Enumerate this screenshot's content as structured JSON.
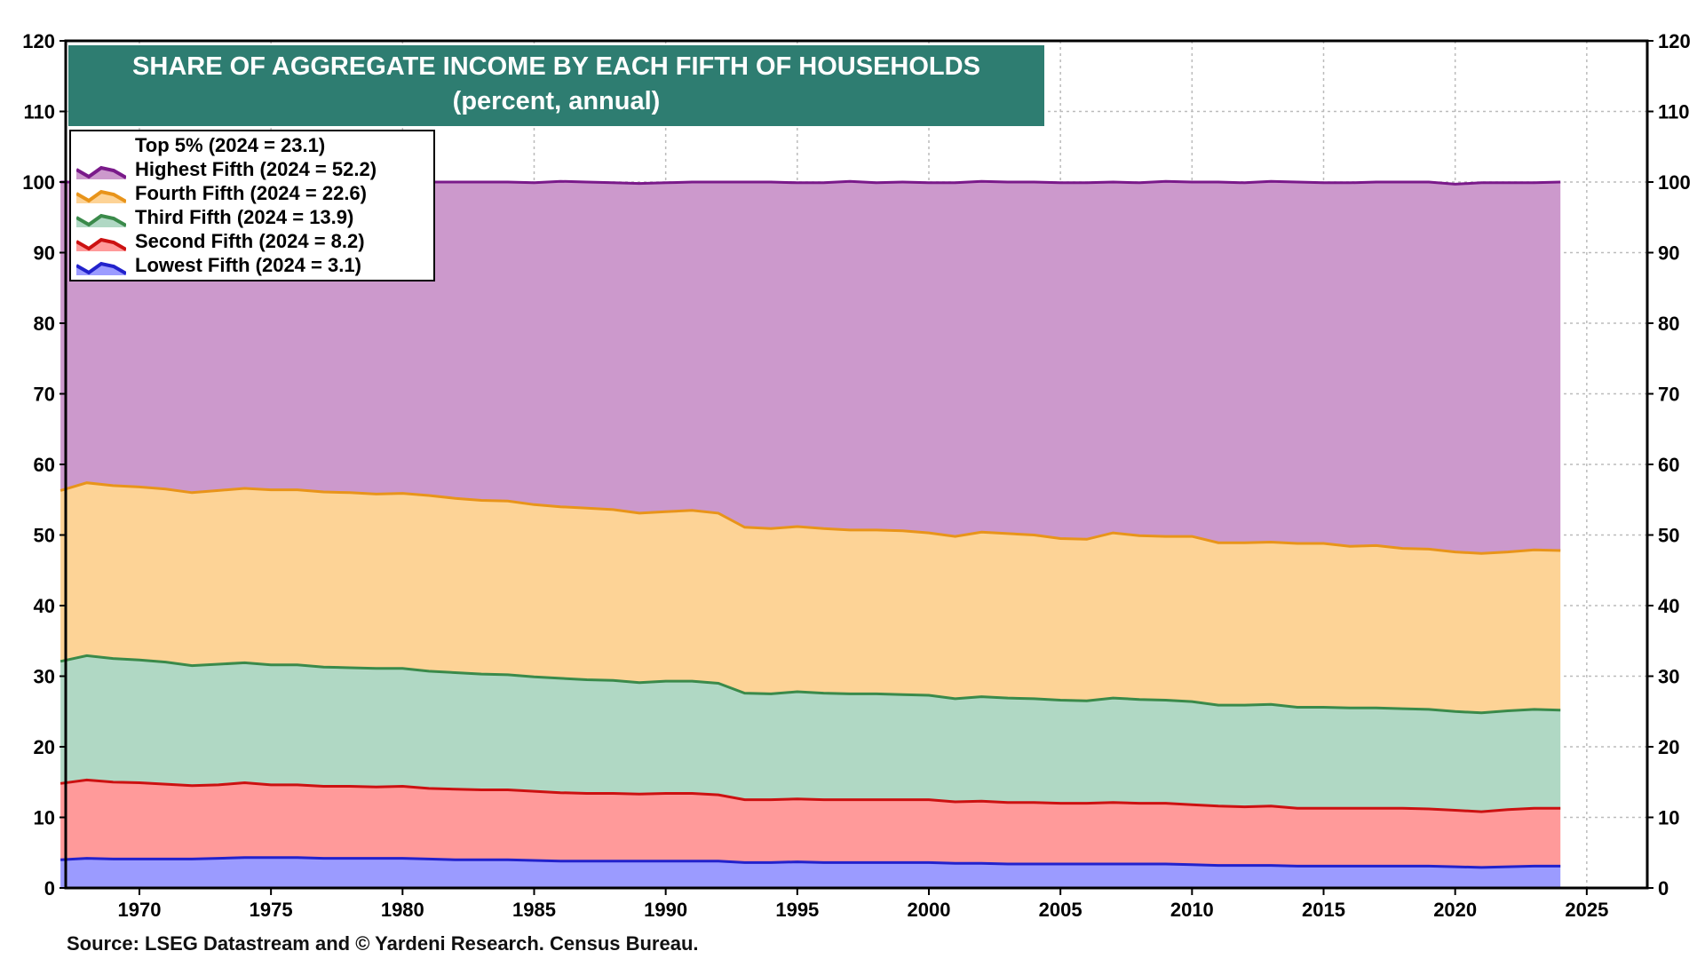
{
  "source": "Source: LSEG Datastream and © Yardeni Research. Census Bureau.",
  "chart_data": {
    "type": "area",
    "title": "SHARE OF AGGREGATE INCOME BY EACH FIFTH OF HOUSEHOLDS",
    "subtitle": "(percent, annual)",
    "stacked": true,
    "xlim": [
      1967.2,
      2027.3
    ],
    "ylim": [
      0,
      120
    ],
    "y_ticks": [
      0,
      10,
      20,
      30,
      40,
      50,
      60,
      70,
      80,
      90,
      100,
      110,
      120
    ],
    "x_ticks": [
      1970,
      1975,
      1980,
      1985,
      1990,
      1995,
      2000,
      2005,
      2010,
      2015,
      2020,
      2025
    ],
    "grid": true,
    "y_axis_both_sides": true,
    "legend_position": "top-left",
    "x": [
      1967,
      1968,
      1969,
      1970,
      1971,
      1972,
      1973,
      1974,
      1975,
      1976,
      1977,
      1978,
      1979,
      1980,
      1981,
      1982,
      1983,
      1984,
      1985,
      1986,
      1987,
      1988,
      1989,
      1990,
      1991,
      1992,
      1993,
      1994,
      1995,
      1996,
      1997,
      1998,
      1999,
      2000,
      2001,
      2002,
      2003,
      2004,
      2005,
      2006,
      2007,
      2008,
      2009,
      2010,
      2011,
      2012,
      2013,
      2014,
      2015,
      2016,
      2017,
      2018,
      2019,
      2020,
      2021,
      2022,
      2023,
      2024
    ],
    "legend_extra": "Top 5% (2024 = 23.1)",
    "series": [
      {
        "name": "Lowest Fifth (2024 = 3.1)",
        "color": "#2222cc",
        "fill": "#9b9bff",
        "values": [
          4.0,
          4.2,
          4.1,
          4.1,
          4.1,
          4.1,
          4.2,
          4.3,
          4.3,
          4.3,
          4.2,
          4.2,
          4.2,
          4.2,
          4.1,
          4.0,
          4.0,
          4.0,
          3.9,
          3.8,
          3.8,
          3.8,
          3.8,
          3.8,
          3.8,
          3.8,
          3.6,
          3.6,
          3.7,
          3.6,
          3.6,
          3.6,
          3.6,
          3.6,
          3.5,
          3.5,
          3.4,
          3.4,
          3.4,
          3.4,
          3.4,
          3.4,
          3.4,
          3.3,
          3.2,
          3.2,
          3.2,
          3.1,
          3.1,
          3.1,
          3.1,
          3.1,
          3.1,
          3.0,
          2.9,
          3.0,
          3.1,
          3.1
        ]
      },
      {
        "name": "Second Fifth (2024 = 8.2)",
        "color": "#cc1111",
        "fill": "#ff9a9a",
        "values": [
          10.8,
          11.1,
          10.9,
          10.8,
          10.6,
          10.4,
          10.4,
          10.6,
          10.3,
          10.3,
          10.2,
          10.2,
          10.1,
          10.2,
          10.0,
          10.0,
          9.9,
          9.9,
          9.8,
          9.7,
          9.6,
          9.6,
          9.5,
          9.6,
          9.6,
          9.4,
          8.9,
          8.9,
          8.9,
          8.9,
          8.9,
          8.9,
          8.9,
          8.9,
          8.7,
          8.8,
          8.7,
          8.7,
          8.6,
          8.6,
          8.7,
          8.6,
          8.6,
          8.5,
          8.4,
          8.3,
          8.4,
          8.2,
          8.2,
          8.2,
          8.2,
          8.2,
          8.1,
          8.0,
          7.9,
          8.1,
          8.2,
          8.2
        ]
      },
      {
        "name": "Third Fifth (2024 = 13.9)",
        "color": "#3a8a4a",
        "fill": "#b0d8c4",
        "values": [
          17.3,
          17.6,
          17.5,
          17.4,
          17.3,
          17.0,
          17.1,
          17.0,
          17.0,
          17.0,
          16.9,
          16.8,
          16.8,
          16.7,
          16.6,
          16.5,
          16.4,
          16.3,
          16.2,
          16.2,
          16.1,
          16.0,
          15.8,
          15.9,
          15.9,
          15.8,
          15.1,
          15.0,
          15.2,
          15.1,
          15.0,
          15.0,
          14.9,
          14.8,
          14.6,
          14.8,
          14.8,
          14.7,
          14.6,
          14.5,
          14.8,
          14.7,
          14.6,
          14.6,
          14.3,
          14.4,
          14.4,
          14.3,
          14.3,
          14.2,
          14.2,
          14.1,
          14.1,
          14.0,
          14.0,
          14.0,
          14.0,
          13.9
        ]
      },
      {
        "name": "Fourth Fifth (2024 = 22.6)",
        "color": "#e8941a",
        "fill": "#fdd396",
        "values": [
          24.2,
          24.5,
          24.5,
          24.5,
          24.5,
          24.5,
          24.6,
          24.7,
          24.8,
          24.8,
          24.8,
          24.8,
          24.7,
          24.8,
          24.9,
          24.7,
          24.6,
          24.6,
          24.4,
          24.3,
          24.3,
          24.2,
          24.0,
          24.0,
          24.2,
          24.1,
          23.5,
          23.4,
          23.4,
          23.3,
          23.2,
          23.2,
          23.2,
          23.0,
          23.0,
          23.3,
          23.3,
          23.2,
          22.9,
          22.9,
          23.4,
          23.2,
          23.2,
          23.4,
          23.0,
          23.0,
          23.0,
          23.2,
          23.2,
          22.9,
          23.0,
          22.7,
          22.7,
          22.6,
          22.6,
          22.5,
          22.6,
          22.6
        ]
      },
      {
        "name": "Highest Fifth (2024 = 52.2)",
        "color": "#7a1a8a",
        "fill": "#cc99cc",
        "values": [
          43.7,
          42.6,
          43.0,
          43.3,
          43.5,
          44.0,
          43.9,
          43.5,
          43.6,
          43.7,
          43.9,
          44.0,
          44.2,
          44.1,
          44.4,
          44.8,
          45.1,
          45.2,
          45.6,
          46.1,
          46.2,
          46.3,
          46.7,
          46.6,
          46.5,
          46.9,
          48.9,
          49.1,
          48.7,
          49.0,
          49.4,
          49.2,
          49.4,
          49.6,
          50.1,
          49.7,
          49.8,
          50.0,
          50.4,
          50.5,
          49.7,
          50.0,
          50.3,
          50.2,
          51.1,
          51.0,
          51.1,
          51.2,
          51.1,
          51.5,
          51.5,
          51.9,
          52.0,
          52.1,
          52.5,
          52.3,
          52.0,
          52.2
        ]
      }
    ]
  }
}
